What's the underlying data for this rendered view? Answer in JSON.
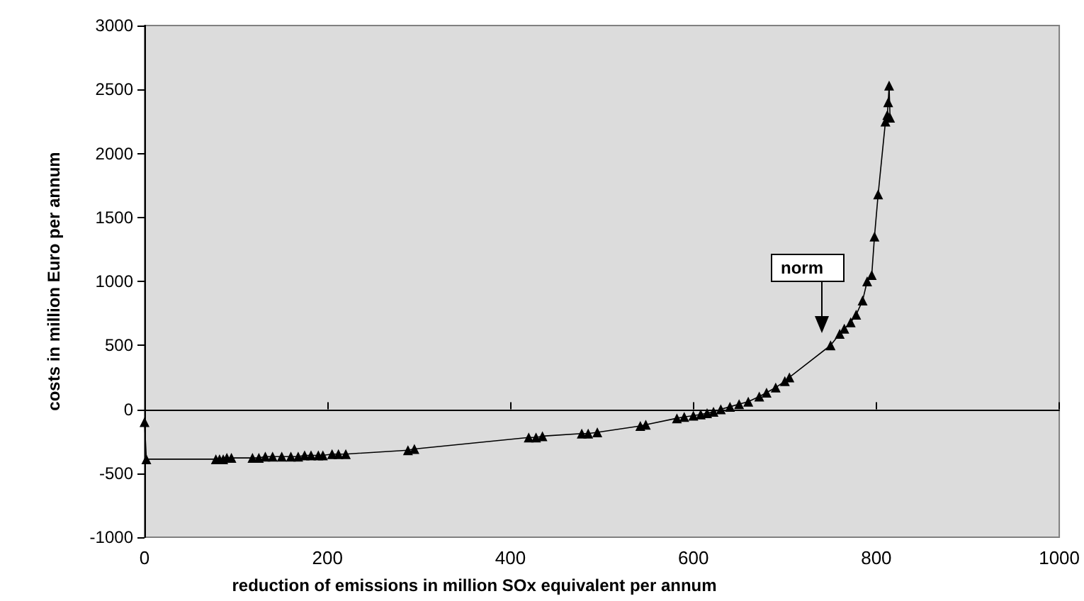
{
  "chart_data": {
    "type": "line",
    "xlabel": "reduction of emissions in million SOx equivalent per annum",
    "ylabel": "costs in million Euro per annum",
    "x": [
      0,
      2,
      78,
      82,
      86,
      90,
      95,
      118,
      125,
      132,
      140,
      150,
      160,
      168,
      175,
      182,
      190,
      195,
      205,
      212,
      220,
      288,
      295,
      420,
      428,
      435,
      478,
      485,
      495,
      542,
      548,
      582,
      590,
      600,
      608,
      615,
      622,
      630,
      640,
      650,
      660,
      672,
      680,
      690,
      700,
      705,
      750,
      760,
      765,
      772,
      778,
      785,
      790,
      795,
      798,
      802,
      810,
      812,
      813,
      814,
      815
    ],
    "series": [
      {
        "color": "#000000",
        "values": [
          -100,
          -390,
          -390,
          -390,
          -390,
          -380,
          -380,
          -380,
          -380,
          -370,
          -370,
          -370,
          -370,
          -370,
          -360,
          -360,
          -360,
          -360,
          -350,
          -350,
          -350,
          -320,
          -310,
          -220,
          -220,
          -210,
          -190,
          -190,
          -180,
          -130,
          -120,
          -70,
          -60,
          -50,
          -40,
          -30,
          -20,
          0,
          20,
          40,
          60,
          100,
          130,
          170,
          220,
          250,
          500,
          590,
          630,
          680,
          740,
          850,
          1000,
          1050,
          1350,
          1680,
          2250,
          2300,
          2400,
          2530,
          2280
        ]
      }
    ],
    "xlim": [
      0,
      1000
    ],
    "xticks": [
      0,
      200,
      400,
      600,
      800,
      1000
    ],
    "ylim": [
      -1000,
      3000
    ],
    "yticks": [
      -1000,
      -500,
      0,
      500,
      1000,
      1500,
      2000,
      2500,
      3000
    ],
    "annotations": [
      "norm"
    ],
    "marker": "triangle",
    "line_style": "solid"
  }
}
